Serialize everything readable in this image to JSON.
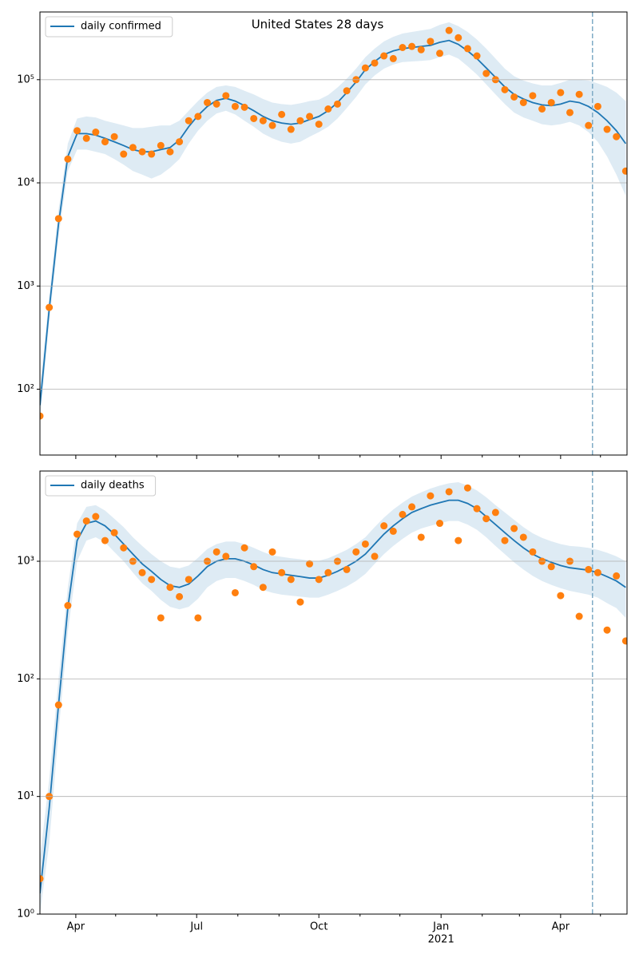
{
  "chart_data": [
    {
      "type": "line",
      "title": "United States 28 days",
      "x": [
        0,
        7,
        14,
        21,
        28,
        35,
        42,
        49,
        56,
        63,
        70,
        77,
        84,
        91,
        98,
        105,
        112,
        119,
        126,
        133,
        140,
        147,
        154,
        161,
        168,
        175,
        182,
        189,
        196,
        203,
        210,
        217,
        224,
        231,
        238,
        245,
        252,
        259,
        266,
        273,
        280,
        287,
        294,
        301,
        308,
        315,
        322,
        329,
        336,
        343,
        350,
        357,
        364,
        371,
        378,
        385,
        392,
        399,
        406,
        413,
        420,
        427,
        434,
        441
      ],
      "xlim": [
        0,
        442
      ],
      "xticks": [
        27,
        118,
        210,
        302,
        392
      ],
      "xminorticks": [
        57,
        88,
        149,
        180,
        241,
        271,
        333,
        361,
        422
      ],
      "show_xtick_labels": false,
      "ylim": [
        23,
        453000
      ],
      "log_y": true,
      "grid": "y",
      "legend": "upper left",
      "yticks": [
        {
          "value": 100,
          "label": "10²"
        },
        {
          "value": 1000,
          "label": "10³"
        },
        {
          "value": 10000,
          "label": "10⁴"
        },
        {
          "value": 100000,
          "label": "10⁵"
        }
      ],
      "series": [
        {
          "name": "daily confirmed",
          "color": "#1f77b4",
          "values": [
            70,
            600,
            4000,
            18000,
            30000,
            30000,
            29000,
            27000,
            25000,
            23000,
            21000,
            20000,
            20000,
            21000,
            22000,
            26000,
            35000,
            45000,
            55000,
            63000,
            66000,
            62000,
            56000,
            50000,
            44000,
            40000,
            38000,
            37000,
            38000,
            41000,
            44000,
            50000,
            60000,
            75000,
            95000,
            125000,
            150000,
            175000,
            190000,
            200000,
            205000,
            210000,
            215000,
            230000,
            240000,
            220000,
            190000,
            160000,
            130000,
            105000,
            85000,
            72000,
            65000,
            60000,
            57000,
            56000,
            58000,
            62000,
            60000,
            55000,
            48000,
            40000,
            32000,
            24000
          ]
        }
      ],
      "observed": {
        "color": "#ff7f0e",
        "values": [
          55,
          620,
          4500,
          17000,
          32000,
          27000,
          31000,
          25000,
          28000,
          19000,
          22000,
          20000,
          19000,
          23000,
          20000,
          25000,
          40000,
          44000,
          60000,
          58000,
          70000,
          55000,
          54000,
          42000,
          40000,
          36000,
          46000,
          33000,
          40000,
          44000,
          37000,
          52000,
          58000,
          78000,
          100000,
          130000,
          145000,
          170000,
          160000,
          205000,
          210000,
          195000,
          235000,
          180000,
          300000,
          255000,
          200000,
          170000,
          115000,
          100000,
          80000,
          68000,
          60000,
          70000,
          52000,
          60000,
          75000,
          48000,
          72000,
          36000,
          55000,
          33000,
          28000,
          13000
        ]
      },
      "band": {
        "color": "#1f77b4",
        "low": [
          50,
          450,
          3000,
          13000,
          21000,
          21000,
          20000,
          19000,
          17000,
          15000,
          13000,
          12000,
          11000,
          12000,
          14000,
          17000,
          24000,
          32000,
          40000,
          47000,
          50000,
          46000,
          40000,
          35000,
          30000,
          27000,
          25000,
          24000,
          25000,
          28000,
          31000,
          35000,
          42000,
          53000,
          68000,
          90000,
          110000,
          128000,
          140000,
          148000,
          150000,
          152000,
          155000,
          165000,
          175000,
          160000,
          135000,
          112000,
          90000,
          72000,
          58000,
          48000,
          43000,
          40000,
          37000,
          36000,
          37000,
          39000,
          36000,
          31000,
          25000,
          18000,
          12000,
          7500
        ],
        "high": [
          100,
          800,
          5500,
          24000,
          42000,
          44000,
          43000,
          40000,
          38000,
          36000,
          34000,
          34000,
          35000,
          36000,
          36000,
          40000,
          50000,
          62000,
          75000,
          85000,
          88000,
          85000,
          78000,
          72000,
          65000,
          60000,
          58000,
          57000,
          59000,
          62000,
          64000,
          71000,
          84000,
          102000,
          128000,
          165000,
          200000,
          235000,
          260000,
          280000,
          290000,
          300000,
          310000,
          340000,
          360000,
          330000,
          290000,
          245000,
          200000,
          160000,
          128000,
          108000,
          98000,
          92000,
          88000,
          88000,
          93000,
          100000,
          100000,
          98000,
          92000,
          85000,
          75000,
          62000
        ]
      },
      "vline": {
        "value": 416,
        "color": "#7fabc6"
      }
    },
    {
      "type": "line",
      "x": [
        0,
        7,
        14,
        21,
        28,
        35,
        42,
        49,
        56,
        63,
        70,
        77,
        84,
        91,
        98,
        105,
        112,
        119,
        126,
        133,
        140,
        147,
        154,
        161,
        168,
        175,
        182,
        189,
        196,
        203,
        210,
        217,
        224,
        231,
        238,
        245,
        252,
        259,
        266,
        273,
        280,
        287,
        294,
        301,
        308,
        315,
        322,
        329,
        336,
        343,
        350,
        357,
        364,
        371,
        378,
        385,
        392,
        399,
        406,
        413,
        420,
        427,
        434,
        441
      ],
      "xlim": [
        0,
        442
      ],
      "xticks": [
        {
          "value": 27,
          "label": "Apr"
        },
        {
          "value": 118,
          "label": "Jul"
        },
        {
          "value": 210,
          "label": "Oct"
        },
        {
          "value": 302,
          "label": "Jan"
        },
        {
          "value": 392,
          "label": "Apr"
        }
      ],
      "xminorticks": [
        57,
        88,
        149,
        180,
        241,
        271,
        333,
        361,
        422
      ],
      "show_xtick_labels": true,
      "xtick_year": {
        "value": 302,
        "label": "2021"
      },
      "ylim": [
        1,
        5850
      ],
      "log_y": true,
      "grid": "y",
      "legend": "upper left",
      "yticks": [
        {
          "value": 1,
          "label": "10⁰"
        },
        {
          "value": 10,
          "label": "10¹"
        },
        {
          "value": 100,
          "label": "10²"
        },
        {
          "value": 1000,
          "label": "10³"
        }
      ],
      "series": [
        {
          "name": "daily deaths",
          "color": "#1f77b4",
          "values": [
            1.5,
            8,
            60,
            400,
            1500,
            2100,
            2200,
            2000,
            1700,
            1400,
            1150,
            950,
            820,
            700,
            620,
            600,
            640,
            750,
            900,
            1000,
            1050,
            1050,
            1000,
            930,
            850,
            800,
            780,
            760,
            740,
            720,
            720,
            760,
            820,
            900,
            1000,
            1150,
            1400,
            1700,
            2000,
            2300,
            2600,
            2800,
            3000,
            3150,
            3300,
            3300,
            3100,
            2800,
            2400,
            2050,
            1750,
            1500,
            1300,
            1150,
            1050,
            980,
            920,
            880,
            860,
            840,
            800,
            740,
            680,
            600
          ]
        }
      ],
      "observed": {
        "color": "#ff7f0e",
        "values": [
          2,
          10,
          60,
          420,
          1700,
          2200,
          2400,
          1500,
          1750,
          1300,
          1000,
          800,
          700,
          330,
          600,
          500,
          700,
          330,
          1000,
          1200,
          1100,
          540,
          1300,
          900,
          600,
          1200,
          800,
          700,
          450,
          950,
          700,
          800,
          1000,
          850,
          1200,
          1400,
          1100,
          2000,
          1800,
          2500,
          2900,
          1600,
          3600,
          2100,
          3900,
          1500,
          4200,
          2800,
          2300,
          2600,
          1500,
          1900,
          1600,
          1200,
          1000,
          900,
          510,
          1000,
          340,
          850,
          800,
          260,
          750,
          210
        ]
      },
      "band": {
        "color": "#1f77b4",
        "low": [
          1,
          4,
          35,
          250,
          1000,
          1500,
          1600,
          1450,
          1200,
          1000,
          800,
          650,
          560,
          470,
          410,
          390,
          410,
          480,
          600,
          680,
          720,
          720,
          680,
          630,
          570,
          540,
          520,
          510,
          500,
          490,
          490,
          520,
          560,
          610,
          680,
          780,
          950,
          1150,
          1350,
          1550,
          1750,
          1900,
          2000,
          2100,
          2200,
          2200,
          2050,
          1850,
          1600,
          1350,
          1150,
          980,
          850,
          750,
          680,
          630,
          590,
          560,
          540,
          520,
          490,
          440,
          400,
          330
        ],
        "high": [
          3,
          14,
          100,
          600,
          2100,
          2900,
          3000,
          2700,
          2300,
          1950,
          1600,
          1350,
          1150,
          1000,
          900,
          870,
          920,
          1070,
          1270,
          1400,
          1470,
          1470,
          1400,
          1300,
          1200,
          1120,
          1090,
          1060,
          1040,
          1010,
          1010,
          1060,
          1150,
          1250,
          1400,
          1600,
          1950,
          2350,
          2750,
          3150,
          3550,
          3850,
          4150,
          4400,
          4600,
          4700,
          4400,
          4000,
          3500,
          3000,
          2600,
          2250,
          1950,
          1730,
          1580,
          1480,
          1400,
          1350,
          1330,
          1300,
          1250,
          1180,
          1100,
          1000
        ]
      },
      "vline": {
        "value": 416,
        "color": "#7fabc6"
      }
    }
  ]
}
